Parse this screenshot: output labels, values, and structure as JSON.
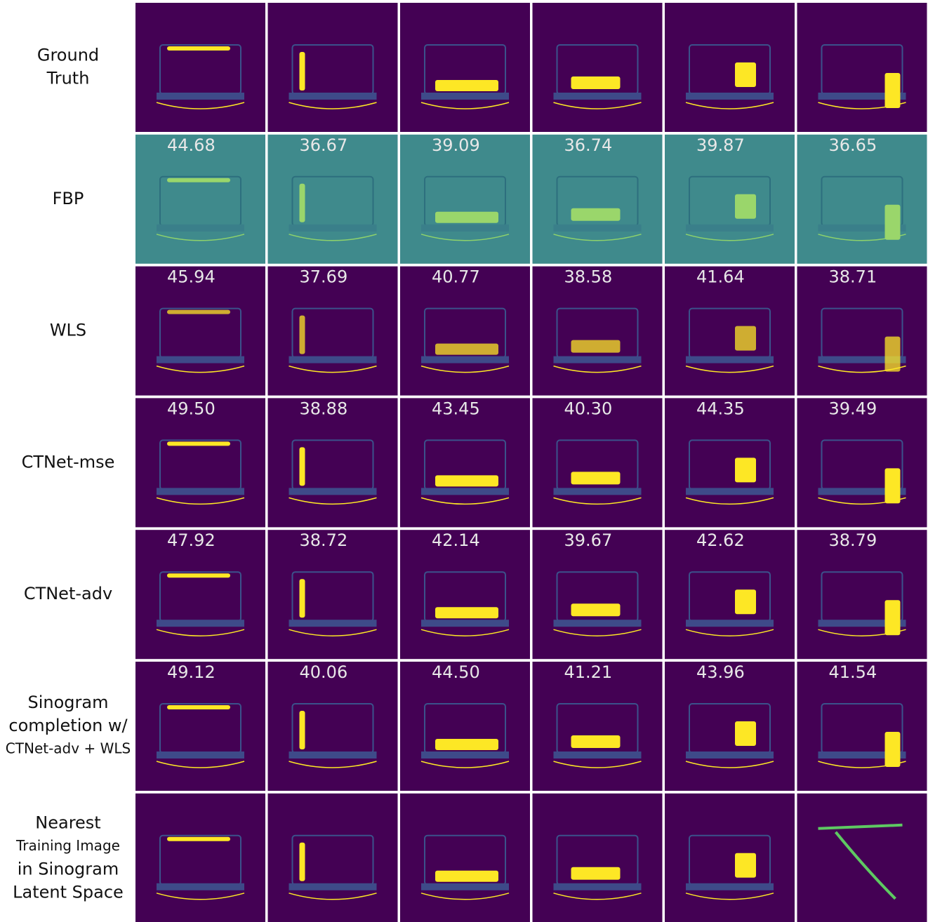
{
  "figure": {
    "rows": [
      {
        "label_lines": [
          "Ground",
          "Truth"
        ]
      },
      {
        "label_lines": [
          "FBP"
        ],
        "scores": [
          "44.68",
          "36.67",
          "39.09",
          "36.74",
          "39.87",
          "36.65"
        ]
      },
      {
        "label_lines": [
          "WLS"
        ],
        "scores": [
          "45.94",
          "37.69",
          "40.77",
          "38.58",
          "41.64",
          "38.71"
        ]
      },
      {
        "label_lines": [
          "CTNet-mse"
        ],
        "scores": [
          "49.50",
          "38.88",
          "43.45",
          "40.30",
          "44.35",
          "39.49"
        ]
      },
      {
        "label_lines": [
          "CTNet-adv"
        ],
        "scores": [
          "47.92",
          "38.72",
          "42.14",
          "39.67",
          "42.62",
          "38.79"
        ]
      },
      {
        "label_lines": [
          "Sinogram",
          "completion w/",
          "CTNet-adv + WLS"
        ],
        "scores": [
          "49.12",
          "40.06",
          "44.50",
          "41.21",
          "43.96",
          "41.54"
        ]
      },
      {
        "label_lines": [
          "Nearest",
          "Training Image",
          "in Sinogram",
          "Latent Space"
        ]
      }
    ]
  }
}
